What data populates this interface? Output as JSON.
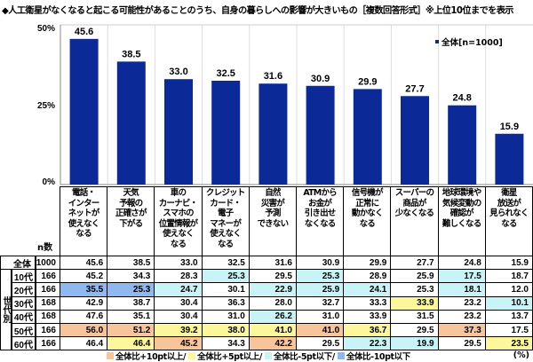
{
  "title": "◆人工衛星がなくなると起こる可能性があることのうち、自身の暮らしへの影響が大きいもの［複数回答形式］※上位10位までを表示",
  "chart_data": {
    "type": "bar",
    "categories": [
      "電話・\nインター\nネットが\n使えなく\nなる",
      "天気\n予報の\n正確さが\n下がる",
      "車の\nカーナビ・\nスマホの\n位置情報が\n使えなく\nなる",
      "クレジット\nカード・\n電子\nマネーが\n使えなく\nなる",
      "自然\n災害が\n予測\nできない",
      "ATMから\nお金が\n引き出せ\nなくなる",
      "信号機が\n正常に\n動かなく\nなる",
      "スーパーの\n商品が\n少なくなる",
      "地球環境や\n気候変動の\n確認が\n難しくなる",
      "衛星\n放送が\n見られなく\nなる"
    ],
    "series": [
      {
        "name": "全体[n=1000]",
        "values": [
          45.6,
          38.5,
          33.0,
          32.5,
          31.6,
          30.9,
          29.9,
          27.7,
          24.8,
          15.9
        ]
      }
    ],
    "yticks": [
      "0%",
      "25%",
      "50%"
    ],
    "ylim": [
      0,
      50
    ],
    "grid": true,
    "legend": "top-right",
    "bar_color": "#0b2a97"
  },
  "table": {
    "n_header": "n数",
    "group_label": "世代別",
    "total": {
      "label": "全体",
      "n": "1000",
      "values": [
        "45.6",
        "38.5",
        "33.0",
        "32.5",
        "31.6",
        "30.9",
        "29.9",
        "27.7",
        "24.8",
        "15.9"
      ]
    },
    "rows": [
      {
        "label": "10代",
        "n": "166",
        "values": [
          "45.2",
          "34.3",
          "28.3",
          "25.3",
          "29.5",
          "25.3",
          "28.9",
          "25.9",
          "17.5",
          "18.7"
        ]
      },
      {
        "label": "20代",
        "n": "166",
        "values": [
          "35.5",
          "25.3",
          "24.7",
          "30.1",
          "22.9",
          "25.9",
          "24.1",
          "25.3",
          "18.1",
          "12.0"
        ]
      },
      {
        "label": "30代",
        "n": "168",
        "values": [
          "42.9",
          "38.7",
          "30.4",
          "36.3",
          "28.0",
          "32.7",
          "33.3",
          "33.9",
          "23.2",
          "10.1"
        ]
      },
      {
        "label": "40代",
        "n": "168",
        "values": [
          "47.6",
          "35.1",
          "30.4",
          "31.0",
          "26.2",
          "31.0",
          "33.9",
          "31.5",
          "23.2",
          "13.7"
        ]
      },
      {
        "label": "50代",
        "n": "166",
        "values": [
          "56.0",
          "51.2",
          "39.2",
          "38.0",
          "41.0",
          "41.0",
          "36.7",
          "29.5",
          "37.3",
          "17.5"
        ]
      },
      {
        "label": "60代",
        "n": "166",
        "values": [
          "46.4",
          "46.4",
          "45.2",
          "34.3",
          "42.2",
          "29.5",
          "22.3",
          "19.9",
          "29.5",
          "23.5"
        ]
      }
    ]
  },
  "highlight_legend": [
    {
      "label": "全体比+10pt以上/",
      "color": "#f8c49a"
    },
    {
      "label": "全体比+5pt以上/",
      "color": "#fbf79a"
    },
    {
      "label": "全体比-5pt以下/",
      "color": "#c8f4f7"
    },
    {
      "label": "全体比-10pt以下",
      "color": "#8fb8ef"
    }
  ],
  "unit": "(%)"
}
